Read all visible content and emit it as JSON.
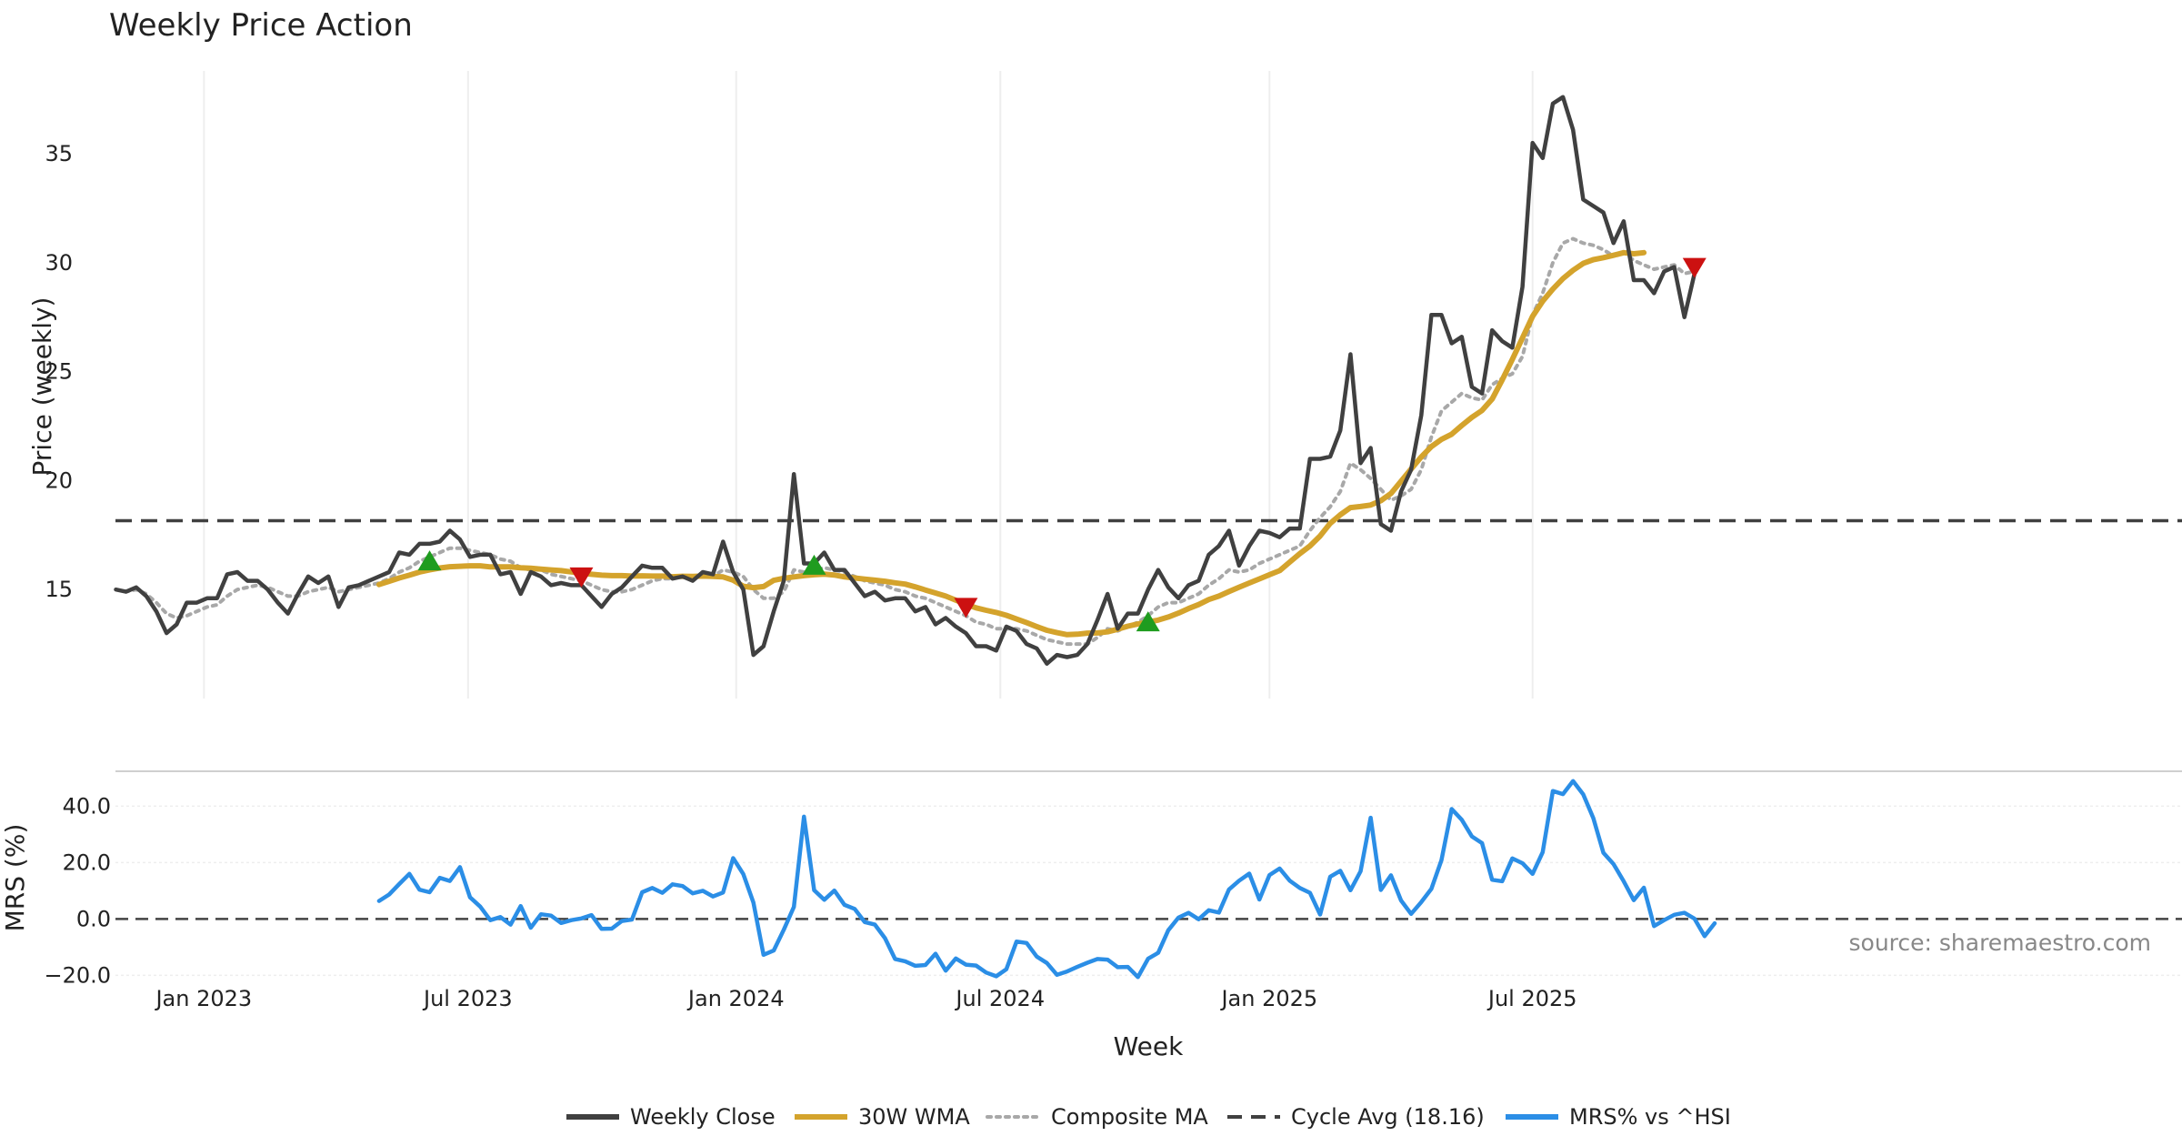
{
  "chart_data": {
    "type": "line",
    "title": "Weekly Price Action",
    "xlabel": "Week",
    "source": "source: sharemaestro.com",
    "x_ticks": [
      {
        "label": "Jan 2023",
        "week": 8.7
      },
      {
        "label": "Jul 2023",
        "week": 34.8
      },
      {
        "label": "Jan 2024",
        "week": 61.3
      },
      {
        "label": "Jul 2024",
        "week": 87.4
      },
      {
        "label": "Jan 2025",
        "week": 114.0
      },
      {
        "label": "Jul 2025",
        "week": 140.0
      }
    ],
    "x_range": [
      0,
      162
    ],
    "price_panel": {
      "ylabel": "Price (weekly)",
      "ylim": [
        10.0,
        38.8
      ],
      "yticks": [
        "15",
        "20",
        "25",
        "30",
        "35"
      ],
      "ytick_values": [
        15,
        20,
        25,
        30,
        35
      ],
      "cycle_avg": 18.16,
      "weekly_close": [
        15.0,
        14.9,
        15.1,
        14.7,
        14.0,
        13.0,
        13.4,
        14.4,
        14.4,
        14.6,
        14.6,
        15.7,
        15.8,
        15.4,
        15.4,
        15.0,
        14.4,
        13.9,
        14.8,
        15.6,
        15.3,
        15.6,
        14.2,
        15.1,
        15.2,
        15.4,
        15.6,
        15.8,
        16.7,
        16.6,
        17.1,
        17.1,
        17.2,
        17.7,
        17.3,
        16.5,
        16.6,
        16.6,
        15.7,
        15.8,
        14.8,
        15.8,
        15.6,
        15.2,
        15.3,
        15.2,
        15.2,
        14.7,
        14.2,
        14.8,
        15.1,
        15.6,
        16.1,
        16.0,
        16.0,
        15.5,
        15.6,
        15.4,
        15.8,
        15.7,
        17.2,
        15.8,
        15.0,
        12.0,
        12.4,
        14.0,
        15.4,
        20.3,
        16.2,
        16.2,
        16.7,
        15.9,
        15.9,
        15.3,
        14.7,
        14.9,
        14.5,
        14.6,
        14.6,
        14.0,
        14.2,
        13.4,
        13.7,
        13.3,
        13.0,
        12.4,
        12.4,
        12.2,
        13.3,
        13.1,
        12.5,
        12.3,
        11.6,
        12.0,
        11.9,
        12.0,
        12.5,
        13.6,
        14.8,
        13.2,
        13.9,
        13.9,
        15.0,
        15.9,
        15.1,
        14.6,
        15.2,
        15.4,
        16.6,
        17.0,
        17.7,
        16.1,
        17.0,
        17.7,
        17.6,
        17.4,
        17.8,
        17.8,
        21.0,
        21.0,
        21.1,
        22.3,
        25.8,
        20.8,
        21.5,
        18.0,
        17.7,
        19.5,
        20.5,
        23.0,
        27.6,
        27.6,
        26.3,
        26.6,
        24.3,
        24.0,
        26.9,
        26.4,
        26.1,
        28.9,
        35.5,
        34.8,
        37.3,
        37.6,
        36.1,
        32.9,
        32.6,
        32.3,
        30.9,
        31.9,
        29.2,
        29.2,
        28.6,
        29.6,
        29.8,
        27.5,
        29.5
      ],
      "wma_30w": {
        "start_week": 26,
        "values": [
          15.23,
          15.38,
          15.53,
          15.66,
          15.8,
          15.9,
          15.99,
          16.05,
          16.07,
          16.09,
          16.09,
          16.04,
          16.04,
          16.04,
          16.0,
          15.98,
          15.94,
          15.9,
          15.87,
          15.81,
          15.75,
          15.7,
          15.66,
          15.64,
          15.64,
          15.62,
          15.63,
          15.62,
          15.62,
          15.59,
          15.61,
          15.6,
          15.62,
          15.6,
          15.58,
          15.43,
          15.15,
          15.09,
          15.14,
          15.42,
          15.52,
          15.58,
          15.64,
          15.68,
          15.71,
          15.67,
          15.58,
          15.53,
          15.48,
          15.43,
          15.38,
          15.31,
          15.25,
          15.12,
          14.98,
          14.84,
          14.7,
          14.51,
          14.33,
          14.16,
          14.05,
          13.95,
          13.82,
          13.65,
          13.48,
          13.3,
          13.13,
          13.02,
          12.93,
          12.95,
          13.0,
          13.01,
          13.06,
          13.18,
          13.32,
          13.42,
          13.51,
          13.6,
          13.74,
          13.92,
          14.13,
          14.31,
          14.54,
          14.7,
          14.91,
          15.11,
          15.3,
          15.49,
          15.68,
          15.87,
          16.26,
          16.65,
          17.0,
          17.46,
          18.04,
          18.43,
          18.76,
          18.81,
          18.88,
          19.08,
          19.41,
          19.97,
          20.53,
          21.09,
          21.56,
          21.89,
          22.13,
          22.53,
          22.9,
          23.22,
          23.74,
          24.62,
          25.56,
          26.55,
          27.54,
          28.23,
          28.79,
          29.27,
          29.65,
          29.97,
          30.14,
          30.23,
          30.34,
          30.46,
          30.41,
          30.46
        ]
      },
      "composite_ma": [
        15.0,
        14.9,
        15.0,
        14.8,
        14.4,
        13.9,
        13.7,
        13.8,
        14.0,
        14.2,
        14.3,
        14.7,
        15.0,
        15.1,
        15.2,
        15.1,
        14.9,
        14.7,
        14.7,
        14.9,
        15.0,
        15.1,
        14.9,
        15.0,
        15.1,
        15.2,
        15.3,
        15.5,
        15.8,
        16.0,
        16.3,
        16.5,
        16.7,
        16.9,
        16.9,
        16.8,
        16.7,
        16.6,
        16.4,
        16.3,
        16.0,
        15.9,
        15.9,
        15.7,
        15.6,
        15.5,
        15.4,
        15.2,
        15.0,
        14.9,
        14.9,
        15.0,
        15.2,
        15.4,
        15.5,
        15.5,
        15.6,
        15.6,
        15.6,
        15.6,
        15.9,
        15.8,
        15.6,
        15.0,
        14.6,
        14.6,
        14.9,
        15.9,
        15.8,
        15.9,
        16.0,
        15.9,
        15.8,
        15.6,
        15.4,
        15.3,
        15.2,
        15.0,
        14.9,
        14.7,
        14.6,
        14.4,
        14.2,
        14.0,
        13.8,
        13.5,
        13.4,
        13.2,
        13.2,
        13.2,
        13.1,
        12.9,
        12.7,
        12.6,
        12.5,
        12.5,
        12.5,
        12.8,
        13.2,
        13.1,
        13.3,
        13.5,
        13.8,
        14.2,
        14.4,
        14.4,
        14.6,
        14.8,
        15.2,
        15.5,
        15.9,
        15.8,
        15.9,
        16.2,
        16.4,
        16.6,
        16.8,
        17.0,
        17.7,
        18.3,
        18.8,
        19.5,
        20.8,
        20.5,
        20.1,
        19.6,
        19.1,
        19.3,
        19.6,
        20.5,
        22.0,
        23.2,
        23.6,
        24.0,
        23.8,
        23.7,
        24.4,
        24.7,
        24.9,
        25.7,
        27.6,
        28.6,
        30.0,
        30.9,
        31.1,
        30.9,
        30.8,
        30.6,
        30.3,
        30.5,
        30.1,
        29.9,
        29.7,
        29.8,
        29.9,
        29.5,
        29.6
      ],
      "buy_signals": [
        {
          "week": 31,
          "value": 16.3
        },
        {
          "week": 69,
          "value": 16.1
        },
        {
          "week": 102,
          "value": 13.5
        }
      ],
      "sell_signals": [
        {
          "week": 46,
          "value": 15.6
        },
        {
          "week": 84,
          "value": 14.2
        },
        {
          "week": 156,
          "value": 29.8
        }
      ]
    },
    "mrs_panel": {
      "ylabel": "MRS (%)",
      "ylim": [
        -21.8,
        52.4
      ],
      "yticks": [
        "40.0",
        "20.0",
        "0.0",
        "−20.0"
      ],
      "ytick_values": [
        40,
        20,
        0,
        -20
      ],
      "start_week": 26,
      "values": [
        6.4,
        8.7,
        12.4,
        16.0,
        10.4,
        9.5,
        14.6,
        13.5,
        18.4,
        7.7,
        4.4,
        -0.4,
        0.7,
        -2.0,
        4.6,
        -3.1,
        1.7,
        1.2,
        -1.4,
        -0.4,
        0.2,
        1.4,
        -3.5,
        -3.4,
        -0.7,
        -0.2,
        9.5,
        11.0,
        9.3,
        12.3,
        11.7,
        9.1,
        10.0,
        8.0,
        9.4,
        21.6,
        15.9,
        5.8,
        -12.7,
        -11.2,
        -3.8,
        4.3,
        36.3,
        10.2,
        6.8,
        10.1,
        5.0,
        3.6,
        -1.1,
        -2.0,
        -6.8,
        -14.2,
        -15.0,
        -16.6,
        -16.3,
        -12.3,
        -18.3,
        -14.0,
        -16.2,
        -16.5,
        -19.0,
        -20.3,
        -17.8,
        -8.0,
        -8.5,
        -13.3,
        -15.6,
        -19.8,
        -18.6,
        -17.0,
        -15.5,
        -14.2,
        -14.4,
        -17.1,
        -17.0,
        -20.6,
        -14.1,
        -12.0,
        -4.0,
        0.5,
        2.2,
        -0.1,
        3.1,
        2.3,
        10.5,
        13.6,
        16.1,
        6.9,
        15.6,
        17.9,
        13.6,
        11.0,
        9.3,
        1.6,
        15.0,
        17.1,
        10.2,
        16.9,
        35.9,
        10.3,
        15.5,
        6.6,
        1.8,
        6.0,
        10.7,
        20.9,
        39.0,
        35.2,
        29.3,
        26.9,
        13.9,
        13.4,
        21.5,
        19.8,
        16.0,
        23.7,
        45.4,
        44.3,
        48.9,
        44.2,
        35.8,
        23.5,
        19.5,
        13.4,
        6.7,
        11.1,
        -2.5,
        -0.4,
        1.5,
        2.2,
        0.1,
        -6.1,
        -1.5
      ]
    },
    "legend": [
      {
        "label": "Weekly Close",
        "color": "#404040",
        "style": "solid"
      },
      {
        "label": "30W WMA",
        "color": "#d4a32c",
        "style": "solid"
      },
      {
        "label": "Composite MA",
        "color": "#a8a8a8",
        "style": "dotted"
      },
      {
        "label": "Cycle Avg (18.16)",
        "color": "#404040",
        "style": "dashed"
      },
      {
        "label": "MRS% vs ^HSI",
        "color": "#2b8ee6",
        "style": "solid"
      }
    ],
    "colors": {
      "close": "#404040",
      "wma": "#d4a32c",
      "composite": "#a8a8a8",
      "cycle": "#404040",
      "mrs": "#2b8ee6",
      "buy": "#1f9c1f",
      "sell": "#cc1111",
      "grid": "#eeeeee",
      "panel_divider": "#cfcfcf"
    }
  }
}
